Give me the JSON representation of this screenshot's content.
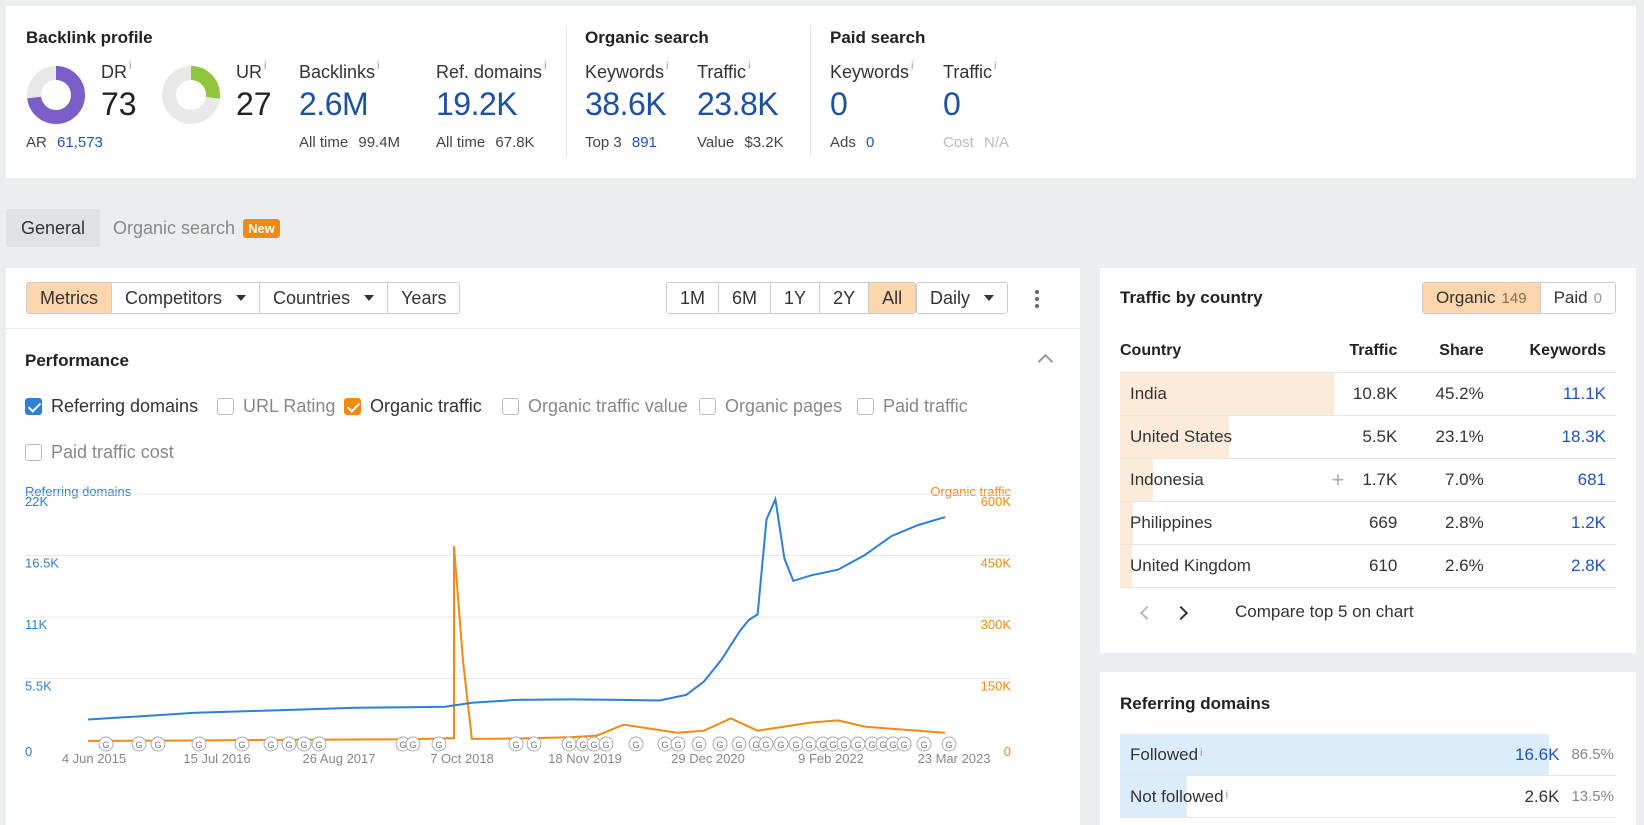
{
  "overview": {
    "backlink_profile": {
      "title": "Backlink profile",
      "dr_label": "DR",
      "dr_value": "73",
      "dr_fraction": 0.73,
      "ur_label": "UR",
      "ur_value": "27",
      "ur_fraction": 0.27,
      "ar_label": "AR",
      "ar_value": "61,573",
      "backlinks_label": "Backlinks",
      "backlinks_value": "2.6M",
      "backlinks_sub_label": "All time",
      "backlinks_sub_value": "99.4M",
      "refdomains_label": "Ref. domains",
      "refdomains_value": "19.2K",
      "refdomains_sub_label": "All time",
      "refdomains_sub_value": "67.8K"
    },
    "organic_search": {
      "title": "Organic search",
      "keywords_label": "Keywords",
      "keywords_value": "38.6K",
      "keywords_sub_label": "Top 3",
      "keywords_sub_value": "891",
      "traffic_label": "Traffic",
      "traffic_value": "23.8K",
      "traffic_sub_label": "Value",
      "traffic_sub_value": "$3.2K"
    },
    "paid_search": {
      "title": "Paid search",
      "keywords_label": "Keywords",
      "keywords_value": "0",
      "keywords_sub_label": "Ads",
      "keywords_sub_value": "0",
      "traffic_label": "Traffic",
      "traffic_value": "0",
      "traffic_sub_label": "Cost",
      "traffic_sub_value": "N/A"
    },
    "info_mark": "i"
  },
  "tabs": {
    "general": "General",
    "organic": "Organic search",
    "new_badge": "New"
  },
  "toolbar": {
    "metrics": "Metrics",
    "competitors": "Competitors",
    "countries": "Countries",
    "years": "Years",
    "ranges": [
      "1M",
      "6M",
      "1Y",
      "2Y",
      "All"
    ],
    "active_range": "All",
    "interval": "Daily"
  },
  "performance": {
    "title": "Performance",
    "checkboxes": [
      {
        "label": "Referring domains",
        "checked": true,
        "color": "#2f7fd3"
      },
      {
        "label": "URL Rating",
        "checked": false
      },
      {
        "label": "Organic traffic",
        "checked": true,
        "color": "#f08a13"
      },
      {
        "label": "Organic traffic value",
        "checked": false
      },
      {
        "label": "Organic pages",
        "checked": false
      },
      {
        "label": "Paid traffic",
        "checked": false
      },
      {
        "label": "Paid traffic cost",
        "checked": false
      }
    ]
  },
  "chart_data": {
    "type": "line",
    "left_axis_label": "Referring domains",
    "right_axis_label": "Organic traffic",
    "left_ticks": [
      "0",
      "5.5K",
      "11K",
      "16.5K",
      "22K"
    ],
    "right_ticks": [
      "0",
      "150K",
      "300K",
      "450K",
      "600K"
    ],
    "left_ylim": [
      0,
      22000
    ],
    "right_ylim": [
      0,
      600000
    ],
    "x_ticks": [
      "4 Jun 2015",
      "15 Jul 2016",
      "26 Aug 2017",
      "7 Oct 2018",
      "18 Nov 2019",
      "29 Dec 2020",
      "9 Feb 2022",
      "23 Mar 2023"
    ],
    "colors": {
      "referring_domains": "#2f7fd3",
      "organic_traffic": "#f08a13"
    },
    "series": [
      {
        "name": "Referring domains",
        "axis": "left",
        "x": [
          "2015-06",
          "2015-12",
          "2016-06",
          "2016-12",
          "2017-06",
          "2017-12",
          "2018-06",
          "2018-10",
          "2019-01",
          "2019-06",
          "2019-12",
          "2020-06",
          "2020-10",
          "2021-01",
          "2021-03",
          "2021-05",
          "2021-07",
          "2021-08",
          "2021-09",
          "2021-10",
          "2021-11",
          "2021-12",
          "2022-01",
          "2022-03",
          "2022-06",
          "2022-09",
          "2022-12",
          "2023-03",
          "2023-06"
        ],
        "values": [
          2100,
          2400,
          2700,
          2850,
          3000,
          3150,
          3200,
          3250,
          3600,
          3850,
          3900,
          3850,
          3800,
          4300,
          5500,
          7500,
          10000,
          11000,
          11500,
          20000,
          21800,
          16500,
          14500,
          15000,
          15500,
          16800,
          18500,
          19500,
          20200
        ]
      },
      {
        "name": "Organic traffic",
        "axis": "right",
        "x": [
          "2015-06",
          "2016-06",
          "2017-06",
          "2018-06",
          "2018-11",
          "2018-11",
          "2018-12",
          "2019-01",
          "2019-06",
          "2019-12",
          "2020-03",
          "2020-06",
          "2020-12",
          "2021-03",
          "2021-06",
          "2021-09",
          "2021-12",
          "2022-03",
          "2022-06",
          "2022-09",
          "2022-12",
          "2023-03",
          "2023-06"
        ],
        "values": [
          5000,
          6000,
          8000,
          9000,
          12000,
          480000,
          200000,
          10000,
          11000,
          14000,
          18000,
          45000,
          25000,
          30000,
          60000,
          30000,
          40000,
          50000,
          55000,
          40000,
          35000,
          30000,
          25000
        ]
      }
    ]
  },
  "traffic_by_country": {
    "title": "Traffic by country",
    "organic_label": "Organic",
    "organic_count": "149",
    "paid_label": "Paid",
    "paid_count": "0",
    "columns": [
      "Country",
      "Traffic",
      "Share",
      "Keywords"
    ],
    "rows": [
      {
        "country": "India",
        "traffic": "10.8K",
        "share": "45.2%",
        "keywords": "11.1K",
        "share_fraction": 0.452
      },
      {
        "country": "United States",
        "traffic": "5.5K",
        "share": "23.1%",
        "keywords": "18.3K",
        "share_fraction": 0.231
      },
      {
        "country": "Indonesia",
        "traffic": "1.7K",
        "share": "7.0%",
        "keywords": "681",
        "share_fraction": 0.07
      },
      {
        "country": "Philippines",
        "traffic": "669",
        "share": "2.8%",
        "keywords": "1.2K",
        "share_fraction": 0.028
      },
      {
        "country": "United Kingdom",
        "traffic": "610",
        "share": "2.6%",
        "keywords": "2.8K",
        "share_fraction": 0.026
      }
    ],
    "compare_label": "Compare top 5 on chart"
  },
  "referring_domains_card": {
    "title": "Referring domains",
    "rows": [
      {
        "label": "Followed",
        "value": "16.6K",
        "pct": "86.5%",
        "fraction": 0.865
      },
      {
        "label": "Not followed",
        "value": "2.6K",
        "pct": "13.5%",
        "fraction": 0.135
      }
    ]
  }
}
